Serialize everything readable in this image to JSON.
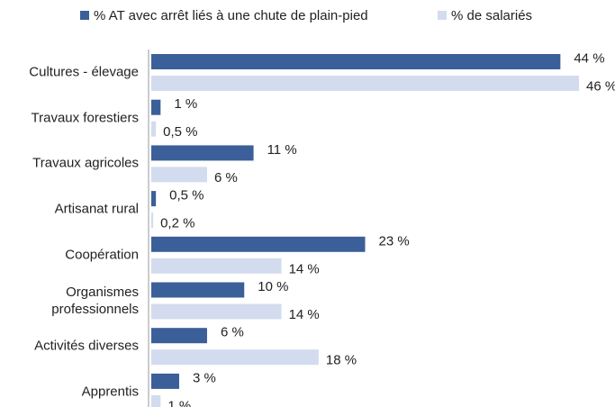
{
  "chart_data": {
    "type": "bar",
    "orientation": "horizontal",
    "categories": [
      "Cultures - élevage",
      "Travaux forestiers",
      "Travaux agricoles",
      "Artisanat rural",
      "Coopération",
      "Organismes professionnels",
      "Activités diverses",
      "Apprentis"
    ],
    "series": [
      {
        "name": "% AT avec arrêt liés à une chute de plain-pied",
        "color": "#3b5f98",
        "values": [
          44,
          1,
          11,
          0.5,
          23,
          10,
          6,
          3
        ],
        "value_labels": [
          "44 %",
          "1 %",
          "11 %",
          "0,5 %",
          "23 %",
          "10 %",
          "6 %",
          "3 %"
        ]
      },
      {
        "name": "% de salariés",
        "color": "#d3dcee",
        "values": [
          46,
          0.5,
          6,
          0.2,
          14,
          14,
          18,
          1
        ],
        "value_labels": [
          "46 %",
          "0,5 %",
          "6 %",
          "0,2 %",
          "14 %",
          "14 %",
          "18 %",
          "1 %"
        ]
      }
    ]
  }
}
